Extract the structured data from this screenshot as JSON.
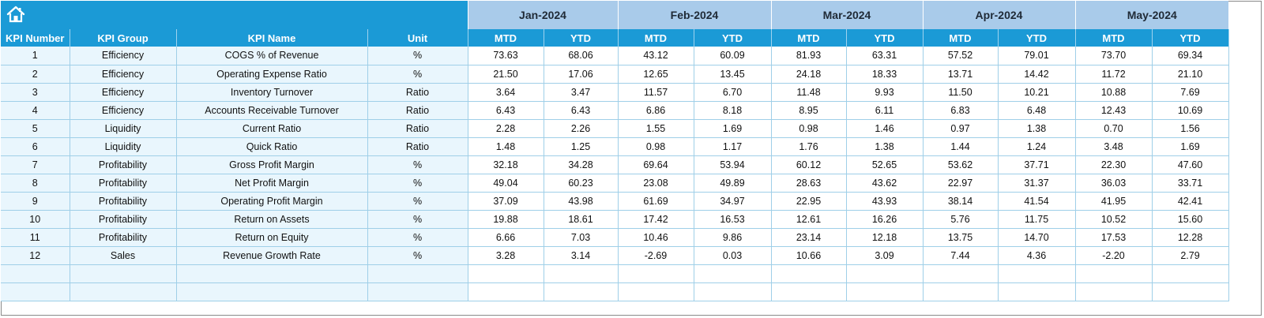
{
  "icons": {
    "home": "home-icon"
  },
  "months": [
    "Jan-2024",
    "Feb-2024",
    "Mar-2024",
    "Apr-2024",
    "May-2024"
  ],
  "headers": {
    "kpi_number": "KPI Number",
    "kpi_group": "KPI Group",
    "kpi_name": "KPI Name",
    "unit": "Unit",
    "mtd": "MTD",
    "ytd": "YTD"
  },
  "rows": [
    {
      "num": "1",
      "group": "Efficiency",
      "name": "COGS % of Revenue",
      "unit": "%",
      "vals": [
        "73.63",
        "68.06",
        "43.12",
        "60.09",
        "81.93",
        "63.31",
        "57.52",
        "79.01",
        "73.70",
        "69.34"
      ]
    },
    {
      "num": "2",
      "group": "Efficiency",
      "name": "Operating Expense Ratio",
      "unit": "%",
      "vals": [
        "21.50",
        "17.06",
        "12.65",
        "13.45",
        "24.18",
        "18.33",
        "13.71",
        "14.42",
        "11.72",
        "21.10"
      ]
    },
    {
      "num": "3",
      "group": "Efficiency",
      "name": "Inventory Turnover",
      "unit": "Ratio",
      "vals": [
        "3.64",
        "3.47",
        "11.57",
        "6.70",
        "11.48",
        "9.93",
        "11.50",
        "10.21",
        "10.88",
        "7.69"
      ]
    },
    {
      "num": "4",
      "group": "Efficiency",
      "name": "Accounts Receivable Turnover",
      "unit": "Ratio",
      "vals": [
        "6.43",
        "6.43",
        "6.86",
        "8.18",
        "8.95",
        "6.11",
        "6.83",
        "6.48",
        "12.43",
        "10.69"
      ]
    },
    {
      "num": "5",
      "group": "Liquidity",
      "name": "Current Ratio",
      "unit": "Ratio",
      "vals": [
        "2.28",
        "2.26",
        "1.55",
        "1.69",
        "0.98",
        "1.46",
        "0.97",
        "1.38",
        "0.70",
        "1.56"
      ]
    },
    {
      "num": "6",
      "group": "Liquidity",
      "name": "Quick Ratio",
      "unit": "Ratio",
      "vals": [
        "1.48",
        "1.25",
        "0.98",
        "1.17",
        "1.76",
        "1.38",
        "1.44",
        "1.24",
        "3.48",
        "1.69"
      ]
    },
    {
      "num": "7",
      "group": "Profitability",
      "name": "Gross Profit Margin",
      "unit": "%",
      "vals": [
        "32.18",
        "34.28",
        "69.64",
        "53.94",
        "60.12",
        "52.65",
        "53.62",
        "37.71",
        "22.30",
        "47.60"
      ]
    },
    {
      "num": "8",
      "group": "Profitability",
      "name": "Net Profit Margin",
      "unit": "%",
      "vals": [
        "49.04",
        "60.23",
        "23.08",
        "49.89",
        "28.63",
        "43.62",
        "22.97",
        "31.37",
        "36.03",
        "33.71"
      ]
    },
    {
      "num": "9",
      "group": "Profitability",
      "name": "Operating Profit Margin",
      "unit": "%",
      "vals": [
        "37.09",
        "43.98",
        "61.69",
        "34.97",
        "22.95",
        "43.93",
        "38.14",
        "41.54",
        "41.95",
        "42.41"
      ]
    },
    {
      "num": "10",
      "group": "Profitability",
      "name": "Return on Assets",
      "unit": "%",
      "vals": [
        "19.88",
        "18.61",
        "17.42",
        "16.53",
        "12.61",
        "16.26",
        "5.76",
        "11.75",
        "10.52",
        "15.60"
      ]
    },
    {
      "num": "11",
      "group": "Profitability",
      "name": "Return on Equity",
      "unit": "%",
      "vals": [
        "6.66",
        "7.03",
        "10.46",
        "9.86",
        "23.14",
        "12.18",
        "13.75",
        "14.70",
        "17.53",
        "12.28"
      ]
    },
    {
      "num": "12",
      "group": "Sales",
      "name": "Revenue Growth Rate",
      "unit": "%",
      "vals": [
        "3.28",
        "3.14",
        "-2.69",
        "0.03",
        "10.66",
        "3.09",
        "7.44",
        "4.36",
        "-2.20",
        "2.79"
      ]
    },
    {
      "num": "",
      "group": "",
      "name": "",
      "unit": "",
      "vals": [
        "",
        "",
        "",
        "",
        "",
        "",
        "",
        "",
        "",
        ""
      ]
    },
    {
      "num": "",
      "group": "",
      "name": "",
      "unit": "",
      "vals": [
        "",
        "",
        "",
        "",
        "",
        "",
        "",
        "",
        "",
        ""
      ]
    }
  ],
  "colors": {
    "header_blue": "#1b9ad6",
    "month_blue": "#a9cbea",
    "left_fill": "#e9f6fd"
  }
}
